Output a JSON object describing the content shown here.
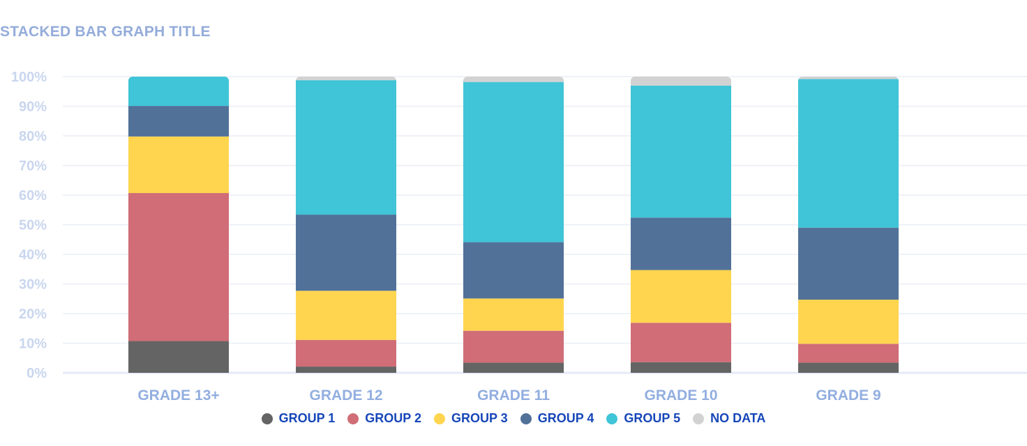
{
  "chart_data": {
    "type": "bar",
    "stacked": true,
    "title": "STACKED BAR GRAPH TITLE",
    "xlabel": "",
    "ylabel": "",
    "ylim": [
      0,
      100
    ],
    "y_ticks": [
      "0%",
      "10%",
      "20%",
      "30%",
      "40%",
      "50%",
      "60%",
      "70%",
      "80%",
      "90%",
      "100%"
    ],
    "grid": true,
    "legend_position": "bottom",
    "categories": [
      "GRADE 13+",
      "GRADE 12",
      "GRADE 11",
      "GRADE 10",
      "GRADE 9"
    ],
    "series": [
      {
        "name": "GROUP 1",
        "color": "#646464",
        "values": [
          10.7,
          2.1,
          3.4,
          3.6,
          3.4
        ]
      },
      {
        "name": "GROUP 2",
        "color": "#D06D77",
        "values": [
          50.0,
          9.0,
          10.8,
          13.3,
          6.4
        ]
      },
      {
        "name": "GROUP 3",
        "color": "#FFD54F",
        "values": [
          19.1,
          16.6,
          10.9,
          17.8,
          14.9
        ]
      },
      {
        "name": "GROUP 4",
        "color": "#517199",
        "values": [
          10.3,
          25.7,
          19.0,
          17.7,
          24.3
        ]
      },
      {
        "name": "GROUP 5",
        "color": "#40C4D7",
        "values": [
          9.9,
          45.4,
          54.1,
          44.6,
          50.2
        ]
      },
      {
        "name": "NO DATA",
        "color": "#D2D2D2",
        "values": [
          0,
          1.2,
          1.8,
          3.0,
          0.8
        ]
      }
    ]
  }
}
